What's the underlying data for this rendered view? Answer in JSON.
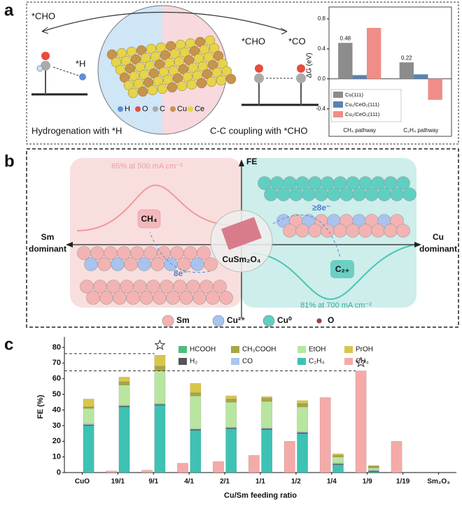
{
  "panel_labels": [
    "a",
    "b",
    "c"
  ],
  "panel_a": {
    "adsorbates": [
      "*CHO",
      "*H",
      "*CHO",
      "*CO"
    ],
    "captions": [
      "Hydrogenation with *H",
      "C-C coupling with *CHO"
    ],
    "legend": [
      "H",
      "O",
      "C",
      "Cu",
      "Ce"
    ]
  },
  "panel_b": {
    "axis_y": "FE",
    "left": [
      "Sm",
      "dominant"
    ],
    "right": [
      "Cu",
      "dominant"
    ],
    "left_note": "65% at 500 mA cm⁻²",
    "right_note": "81% at 700 mA cm⁻²",
    "left_product": "CH₄",
    "right_product": "C₂₊",
    "center": "CuSm₂O₄",
    "left_electrons": "8e⁻",
    "right_electrons": "≥8e⁻",
    "legend": [
      "Sm",
      "Cu²⁺",
      "Cu⁰",
      "O"
    ]
  },
  "chart_data": [
    {
      "type": "bar",
      "ylabel": "ΔG (eV)",
      "categories": [
        "CH₄ pathway",
        "C₂H₄ pathway"
      ],
      "series": [
        {
          "name": "Cu(111)",
          "color": "#8c8c8c",
          "values": [
            0.48,
            0.22
          ],
          "data_labels": true
        },
        {
          "name": "Cu₁/CeO₂(111)",
          "color": "#5b82b0",
          "values": [
            0.05,
            0.06
          ]
        },
        {
          "name": "Cu₂/CeO₂(111)",
          "color": "#f08d88",
          "values": [
            0.68,
            -0.28
          ]
        }
      ],
      "ylim": [
        -0.58,
        0.94
      ],
      "yticks": [
        -0.4,
        {
          "value": 0,
          "label": "0.0"
        },
        0.4,
        0.8
      ],
      "legend": "lower left"
    },
    {
      "type": "bar",
      "stacked": true,
      "xlabel": "Cu/Sm feeding ratio",
      "ylabel": "FE (%)",
      "categories": [
        "CuO",
        "19/1",
        "9/1",
        "4/1",
        "2/1",
        "1/1",
        "1/2",
        "1/4",
        "1/9",
        "1/19",
        "Sm₂O₃"
      ],
      "series": [
        {
          "name": "CH₄",
          "color": "#f4aaa8",
          "stack": 1,
          "values": [
            0,
            1,
            1.5,
            6,
            7,
            11,
            20,
            48,
            65,
            20,
            0
          ]
        },
        {
          "name": "C₂H₄",
          "color": "#3ec2b3",
          "stack": 2,
          "values": [
            30,
            42,
            43,
            27,
            28,
            27.5,
            25,
            5,
            0.5,
            0,
            0
          ]
        },
        {
          "name": "H₂",
          "color": "#555555",
          "stack": 2,
          "values": [
            0.5,
            0.5,
            0.5,
            0.5,
            0.5,
            0.5,
            0.5,
            0.5,
            0.5,
            0,
            0
          ]
        },
        {
          "name": "CO",
          "color": "#a9c6ee",
          "stack": 2,
          "values": [
            0.5,
            0.5,
            0.5,
            0.5,
            0.5,
            0.5,
            0.5,
            0.5,
            0.5,
            0,
            0
          ]
        },
        {
          "name": "EtOH",
          "color": "#b8e6a0",
          "stack": 2,
          "values": [
            10,
            13,
            21,
            21,
            16,
            17,
            16,
            4,
            1.5,
            0,
            0
          ]
        },
        {
          "name": "CH₃COOH",
          "color": "#a8a544",
          "stack": 2,
          "values": [
            1,
            2,
            3,
            2,
            2,
            2,
            2,
            1,
            1,
            0,
            0
          ]
        },
        {
          "name": "PrOH",
          "color": "#d8c64c",
          "stack": 2,
          "values": [
            5,
            3,
            7,
            6,
            2,
            1,
            2,
            1,
            0.5,
            0,
            0
          ]
        },
        {
          "name": "HCOOH",
          "color": "#4cbf7a",
          "stack": 2,
          "values": [
            0,
            0,
            0,
            0,
            0,
            0,
            0,
            0,
            0,
            0,
            0
          ]
        }
      ],
      "ylim": [
        0,
        84
      ],
      "yticks": [
        0,
        10,
        20,
        30,
        40,
        50,
        60,
        70,
        80
      ],
      "reference_lines": [
        76,
        65
      ]
    }
  ]
}
